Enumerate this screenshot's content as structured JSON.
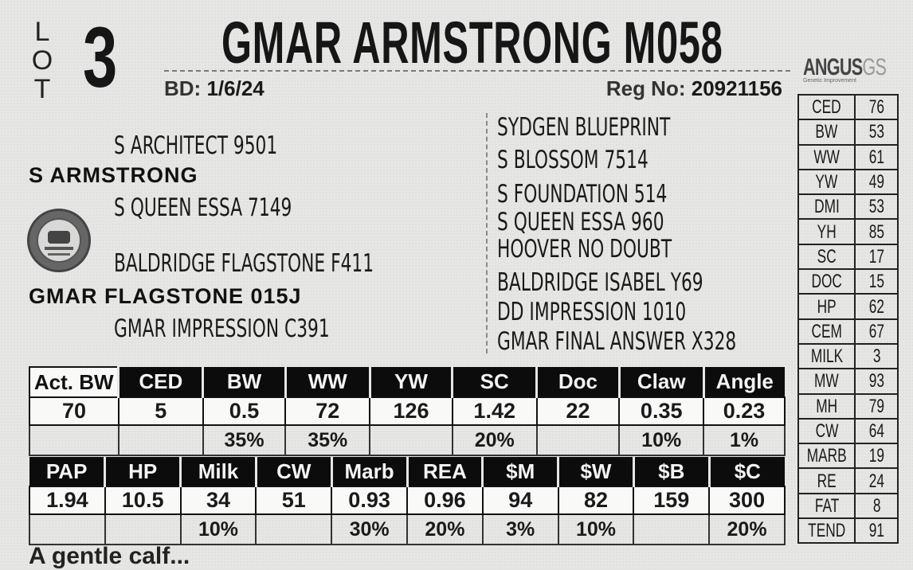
{
  "lot": {
    "letters": [
      "L",
      "O",
      "T"
    ],
    "number": "3"
  },
  "animal": {
    "name": "GMAR ARMSTRONG M058",
    "bd_label": "BD:",
    "bd_value": "1/6/24",
    "reg_label": "Reg No:",
    "reg_value": "20921156"
  },
  "pedigree": {
    "sire": "S ARMSTRONG",
    "sire_sire": "S ARCHITECT 9501",
    "sire_dam": "S QUEEN ESSA 7149",
    "dam": "GMAR FLAGSTONE 015J",
    "dam_sire": "BALDRIDGE FLAGSTONE F411",
    "dam_dam": "GMAR IMPRESSION C391",
    "great_grandparents": [
      "SYDGEN BLUEPRINT",
      "S BLOSSOM 7514",
      "S FOUNDATION 514",
      "S QUEEN ESSA 960",
      "HOOVER NO DOUBT",
      "BALDRIDGE ISABEL Y69",
      "DD IMPRESSION 1010",
      "GMAR FINAL ANSWER X328"
    ]
  },
  "logo": {
    "word": "ANGUS",
    "suffix": "GS",
    "sub": "Genetic Improvement"
  },
  "side_percentiles": [
    {
      "trait": "CED",
      "value": "76"
    },
    {
      "trait": "BW",
      "value": "53"
    },
    {
      "trait": "WW",
      "value": "61"
    },
    {
      "trait": "YW",
      "value": "49"
    },
    {
      "trait": "DMI",
      "value": "53"
    },
    {
      "trait": "YH",
      "value": "85"
    },
    {
      "trait": "SC",
      "value": "17"
    },
    {
      "trait": "DOC",
      "value": "15"
    },
    {
      "trait": "HP",
      "value": "62"
    },
    {
      "trait": "CEM",
      "value": "67"
    },
    {
      "trait": "MILK",
      "value": "3"
    },
    {
      "trait": "MW",
      "value": "93"
    },
    {
      "trait": "MH",
      "value": "79"
    },
    {
      "trait": "CW",
      "value": "64"
    },
    {
      "trait": "MARB",
      "value": "19"
    },
    {
      "trait": "RE",
      "value": "24"
    },
    {
      "trait": "FAT",
      "value": "8"
    },
    {
      "trait": "TEND",
      "value": "91"
    }
  ],
  "epd_table_1": {
    "headers": [
      "Act. BW",
      "CED",
      "BW",
      "WW",
      "YW",
      "SC",
      "Doc",
      "Claw",
      "Angle"
    ],
    "values": [
      "70",
      "5",
      "0.5",
      "72",
      "126",
      "1.42",
      "22",
      "0.35",
      "0.23"
    ],
    "percents": [
      "",
      "",
      "35%",
      "35%",
      "",
      "20%",
      "",
      "10%",
      "1%"
    ]
  },
  "epd_table_2": {
    "headers": [
      "PAP",
      "HP",
      "Milk",
      "CW",
      "Marb",
      "REA",
      "$M",
      "$W",
      "$B",
      "$C"
    ],
    "values": [
      "1.94",
      "10.5",
      "34",
      "51",
      "0.93",
      "0.96",
      "94",
      "82",
      "159",
      "300"
    ],
    "percents": [
      "",
      "",
      "10%",
      "",
      "30%",
      "20%",
      "3%",
      "10%",
      "",
      "20%"
    ]
  },
  "footer_cut": "A gentle calf...",
  "colors": {
    "background": "#e6e6e4",
    "header_bg": "#0c0c0c",
    "header_text": "#f4f4f4",
    "text": "#1a1a1a"
  }
}
